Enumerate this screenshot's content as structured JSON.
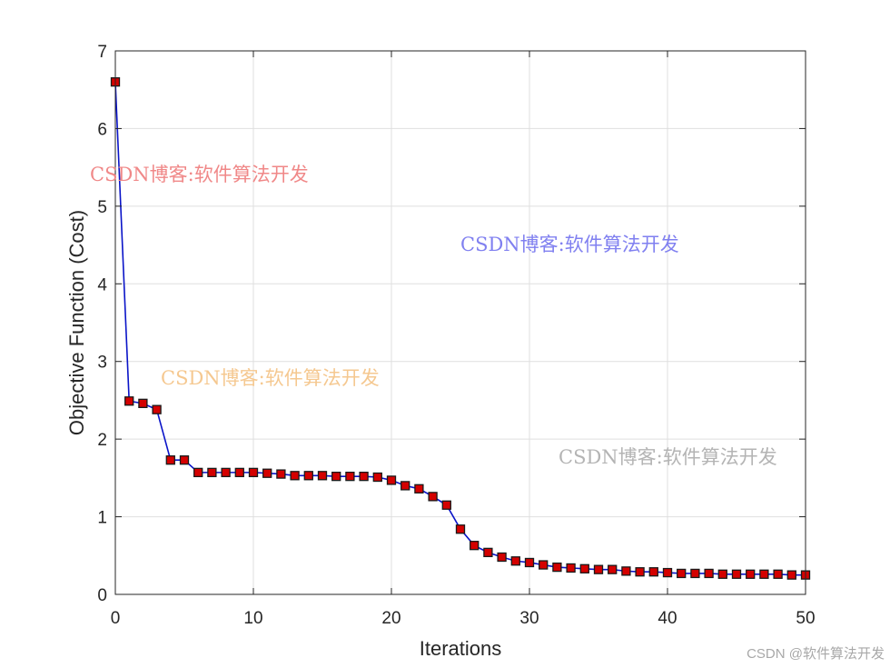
{
  "chart_data": {
    "type": "line",
    "xlabel": "Iterations",
    "ylabel": "Objective Function (Cost)",
    "x": [
      0,
      1,
      2,
      3,
      4,
      5,
      6,
      7,
      8,
      9,
      10,
      11,
      12,
      13,
      14,
      15,
      16,
      17,
      18,
      19,
      20,
      21,
      22,
      23,
      24,
      25,
      26,
      27,
      28,
      29,
      30,
      31,
      32,
      33,
      34,
      35,
      36,
      37,
      38,
      39,
      40,
      41,
      42,
      43,
      44,
      45,
      46,
      47,
      48,
      49,
      50
    ],
    "values": [
      6.6,
      2.49,
      2.46,
      2.38,
      1.73,
      1.73,
      1.57,
      1.57,
      1.57,
      1.57,
      1.57,
      1.56,
      1.55,
      1.53,
      1.53,
      1.53,
      1.52,
      1.52,
      1.52,
      1.51,
      1.47,
      1.4,
      1.36,
      1.26,
      1.15,
      0.84,
      0.63,
      0.54,
      0.48,
      0.43,
      0.41,
      0.38,
      0.35,
      0.34,
      0.33,
      0.32,
      0.32,
      0.3,
      0.29,
      0.29,
      0.28,
      0.27,
      0.27,
      0.27,
      0.26,
      0.26,
      0.26,
      0.26,
      0.26,
      0.25,
      0.25
    ],
    "color": "#0a14c8",
    "marker_color": "#d40000",
    "xlim": [
      0,
      50
    ],
    "xticks": [
      0,
      10,
      20,
      30,
      40,
      50
    ],
    "ylim": [
      0,
      7
    ],
    "yticks": [
      0,
      1,
      2,
      3,
      4,
      5,
      6,
      7
    ],
    "grid": true,
    "watermarks": [
      {
        "text": "CSDN博客:软件算法开发",
        "color": "#f08888"
      },
      {
        "text": "CSDN博客:软件算法开发",
        "color": "#8080f0"
      },
      {
        "text": "CSDN博客:软件算法开发",
        "color": "#f5c890"
      },
      {
        "text": "CSDN博客:软件算法开发",
        "color": "#b4b4b4"
      }
    ],
    "credit": "CSDN @软件算法开发"
  }
}
